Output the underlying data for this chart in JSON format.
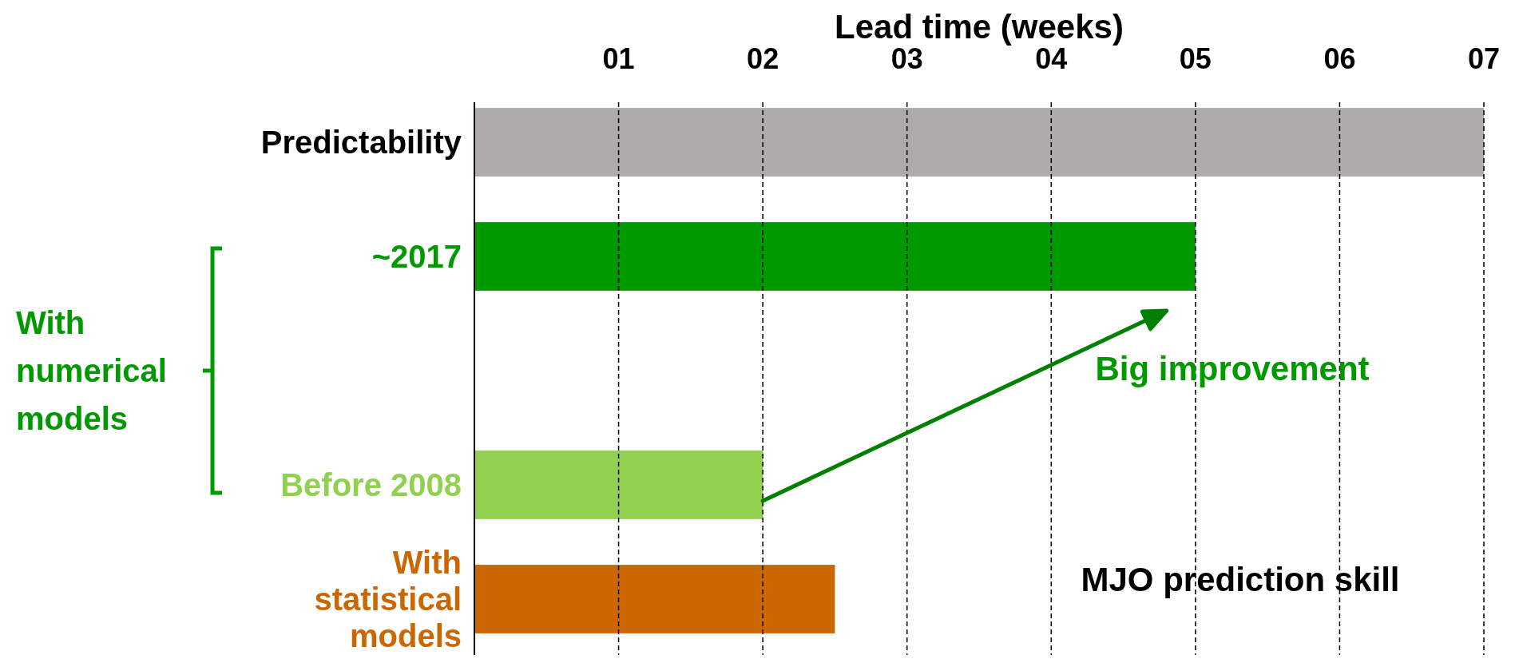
{
  "chart_data": {
    "type": "bar",
    "orientation": "horizontal",
    "xlabel": "Lead time (weeks)",
    "categories": [
      "Predictability",
      "~2017",
      null,
      "Before 2008",
      "With statistical models"
    ],
    "values": [
      7,
      5,
      null,
      2,
      2.5
    ],
    "colors": [
      "#adaaa9",
      "#009900",
      null,
      "#92d050",
      "#cc6600"
    ],
    "xlim": [
      0,
      7
    ],
    "xticks": [
      {
        "value": 1,
        "label": "01"
      },
      {
        "value": 2,
        "label": "02"
      },
      {
        "value": 3,
        "label": "03"
      },
      {
        "value": 4,
        "label": "04"
      },
      {
        "value": 5,
        "label": "05"
      },
      {
        "value": 6,
        "label": "06"
      },
      {
        "value": 7,
        "label": "07"
      }
    ],
    "grid": "x",
    "line_style": "dashed",
    "annotations": [
      "With numerical models",
      "Big improvement",
      "MJO prediction skill"
    ]
  }
}
